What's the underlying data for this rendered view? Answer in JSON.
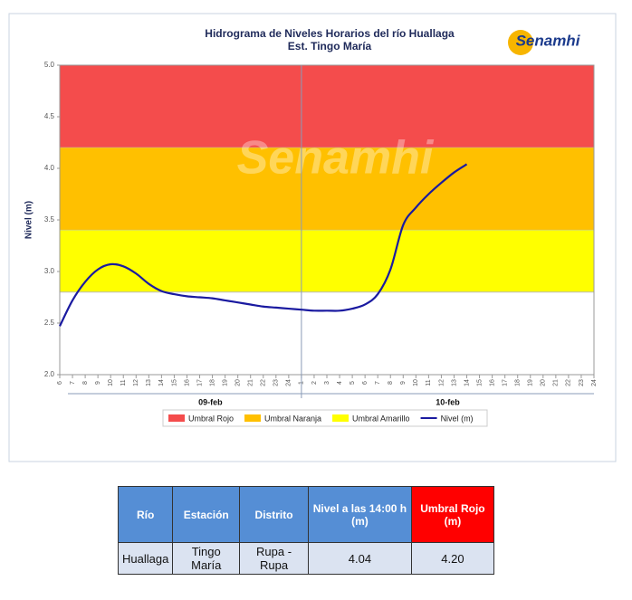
{
  "chart_data": {
    "type": "line",
    "title": "Hidrograma de Niveles Horarios del río Huallaga",
    "subtitle": "Est. Tingo María",
    "logo": "Senamhi",
    "watermark": "Senamhi",
    "ylabel": "Nivel (m)",
    "ylim": [
      2,
      5
    ],
    "yticks": [
      {
        "value": 2,
        "label": "2.0"
      },
      {
        "value": 2.5,
        "label": "2.5"
      },
      {
        "value": 3,
        "label": "3.0"
      },
      {
        "value": 3.5,
        "label": "3.5"
      },
      {
        "value": 4,
        "label": "4.0"
      },
      {
        "value": 4.5,
        "label": "4.5"
      },
      {
        "value": 5,
        "label": "5.0"
      }
    ],
    "categories": [
      "6",
      "7",
      "8",
      "9",
      "10",
      "11",
      "12",
      "13",
      "14",
      "15",
      "16",
      "17",
      "18",
      "19",
      "20",
      "21",
      "22",
      "23",
      "24",
      "1",
      "2",
      "3",
      "4",
      "5",
      "6",
      "7",
      "8",
      "9",
      "10",
      "11",
      "12",
      "13",
      "14",
      "15",
      "16",
      "17",
      "18",
      "19",
      "20",
      "21",
      "22",
      "23",
      "24"
    ],
    "groups": [
      "09-feb",
      "10-feb"
    ],
    "bands": [
      {
        "name": "Umbral Rojo",
        "color": "#f44c4c",
        "from": 4.2,
        "to": 5
      },
      {
        "name": "Umbral Naranja",
        "color": "#ffc000",
        "from": 3.4,
        "to": 4.2
      },
      {
        "name": "Umbral Amarillo",
        "color": "#ffff00",
        "from": 2.8,
        "to": 3.4
      }
    ],
    "series": [
      {
        "name": "Nivel (m)",
        "color": "#1a1aa0",
        "values": [
          2.47,
          2.72,
          2.9,
          3.02,
          3.07,
          3.05,
          2.98,
          2.88,
          2.81,
          2.78,
          2.76,
          2.75,
          2.74,
          2.72,
          2.7,
          2.68,
          2.66,
          2.65,
          2.64,
          2.63,
          2.62,
          2.62,
          2.62,
          2.64,
          2.68,
          2.78,
          3.02,
          3.45,
          3.62,
          3.75,
          3.86,
          3.96,
          4.04,
          null,
          null,
          null,
          null,
          null,
          null,
          null,
          null,
          null,
          null
        ]
      }
    ]
  },
  "table": {
    "header": [
      "Río",
      "Estación",
      "Distrito",
      "Nivel a las 14:00 h (m)",
      "Umbral Rojo (m)"
    ],
    "rows": [
      [
        "Huallaga",
        "Tingo María",
        "Rupa - Rupa",
        "4.04",
        "4.20"
      ]
    ]
  }
}
